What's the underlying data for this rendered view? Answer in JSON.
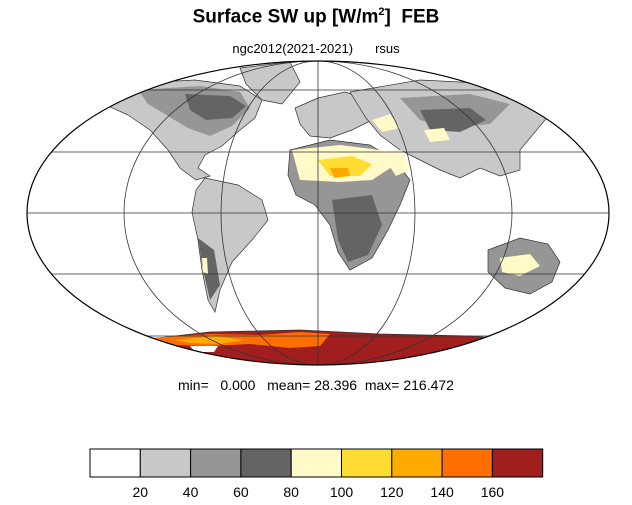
{
  "title": {
    "main": "Surface SW up [W/m",
    "superscript": "2",
    "close": "]",
    "month": "FEB"
  },
  "subtitle": {
    "experiment": "ngc2012(2021-2021)",
    "variable": "rsus"
  },
  "stats": {
    "min_label": "min=",
    "min_value": "0.000",
    "mean_label": "mean=",
    "mean_value": "28.396",
    "max_label": "max=",
    "max_value": "216.472"
  },
  "legend": {
    "colors": [
      "#ffffff",
      "#c8c8c8",
      "#969696",
      "#646464",
      "#fffac8",
      "#ffdc32",
      "#ffaa00",
      "#ff6e00",
      "#a01e1e"
    ],
    "tick_labels": [
      "20",
      "40",
      "60",
      "80",
      "100",
      "120",
      "140",
      "160"
    ]
  }
}
